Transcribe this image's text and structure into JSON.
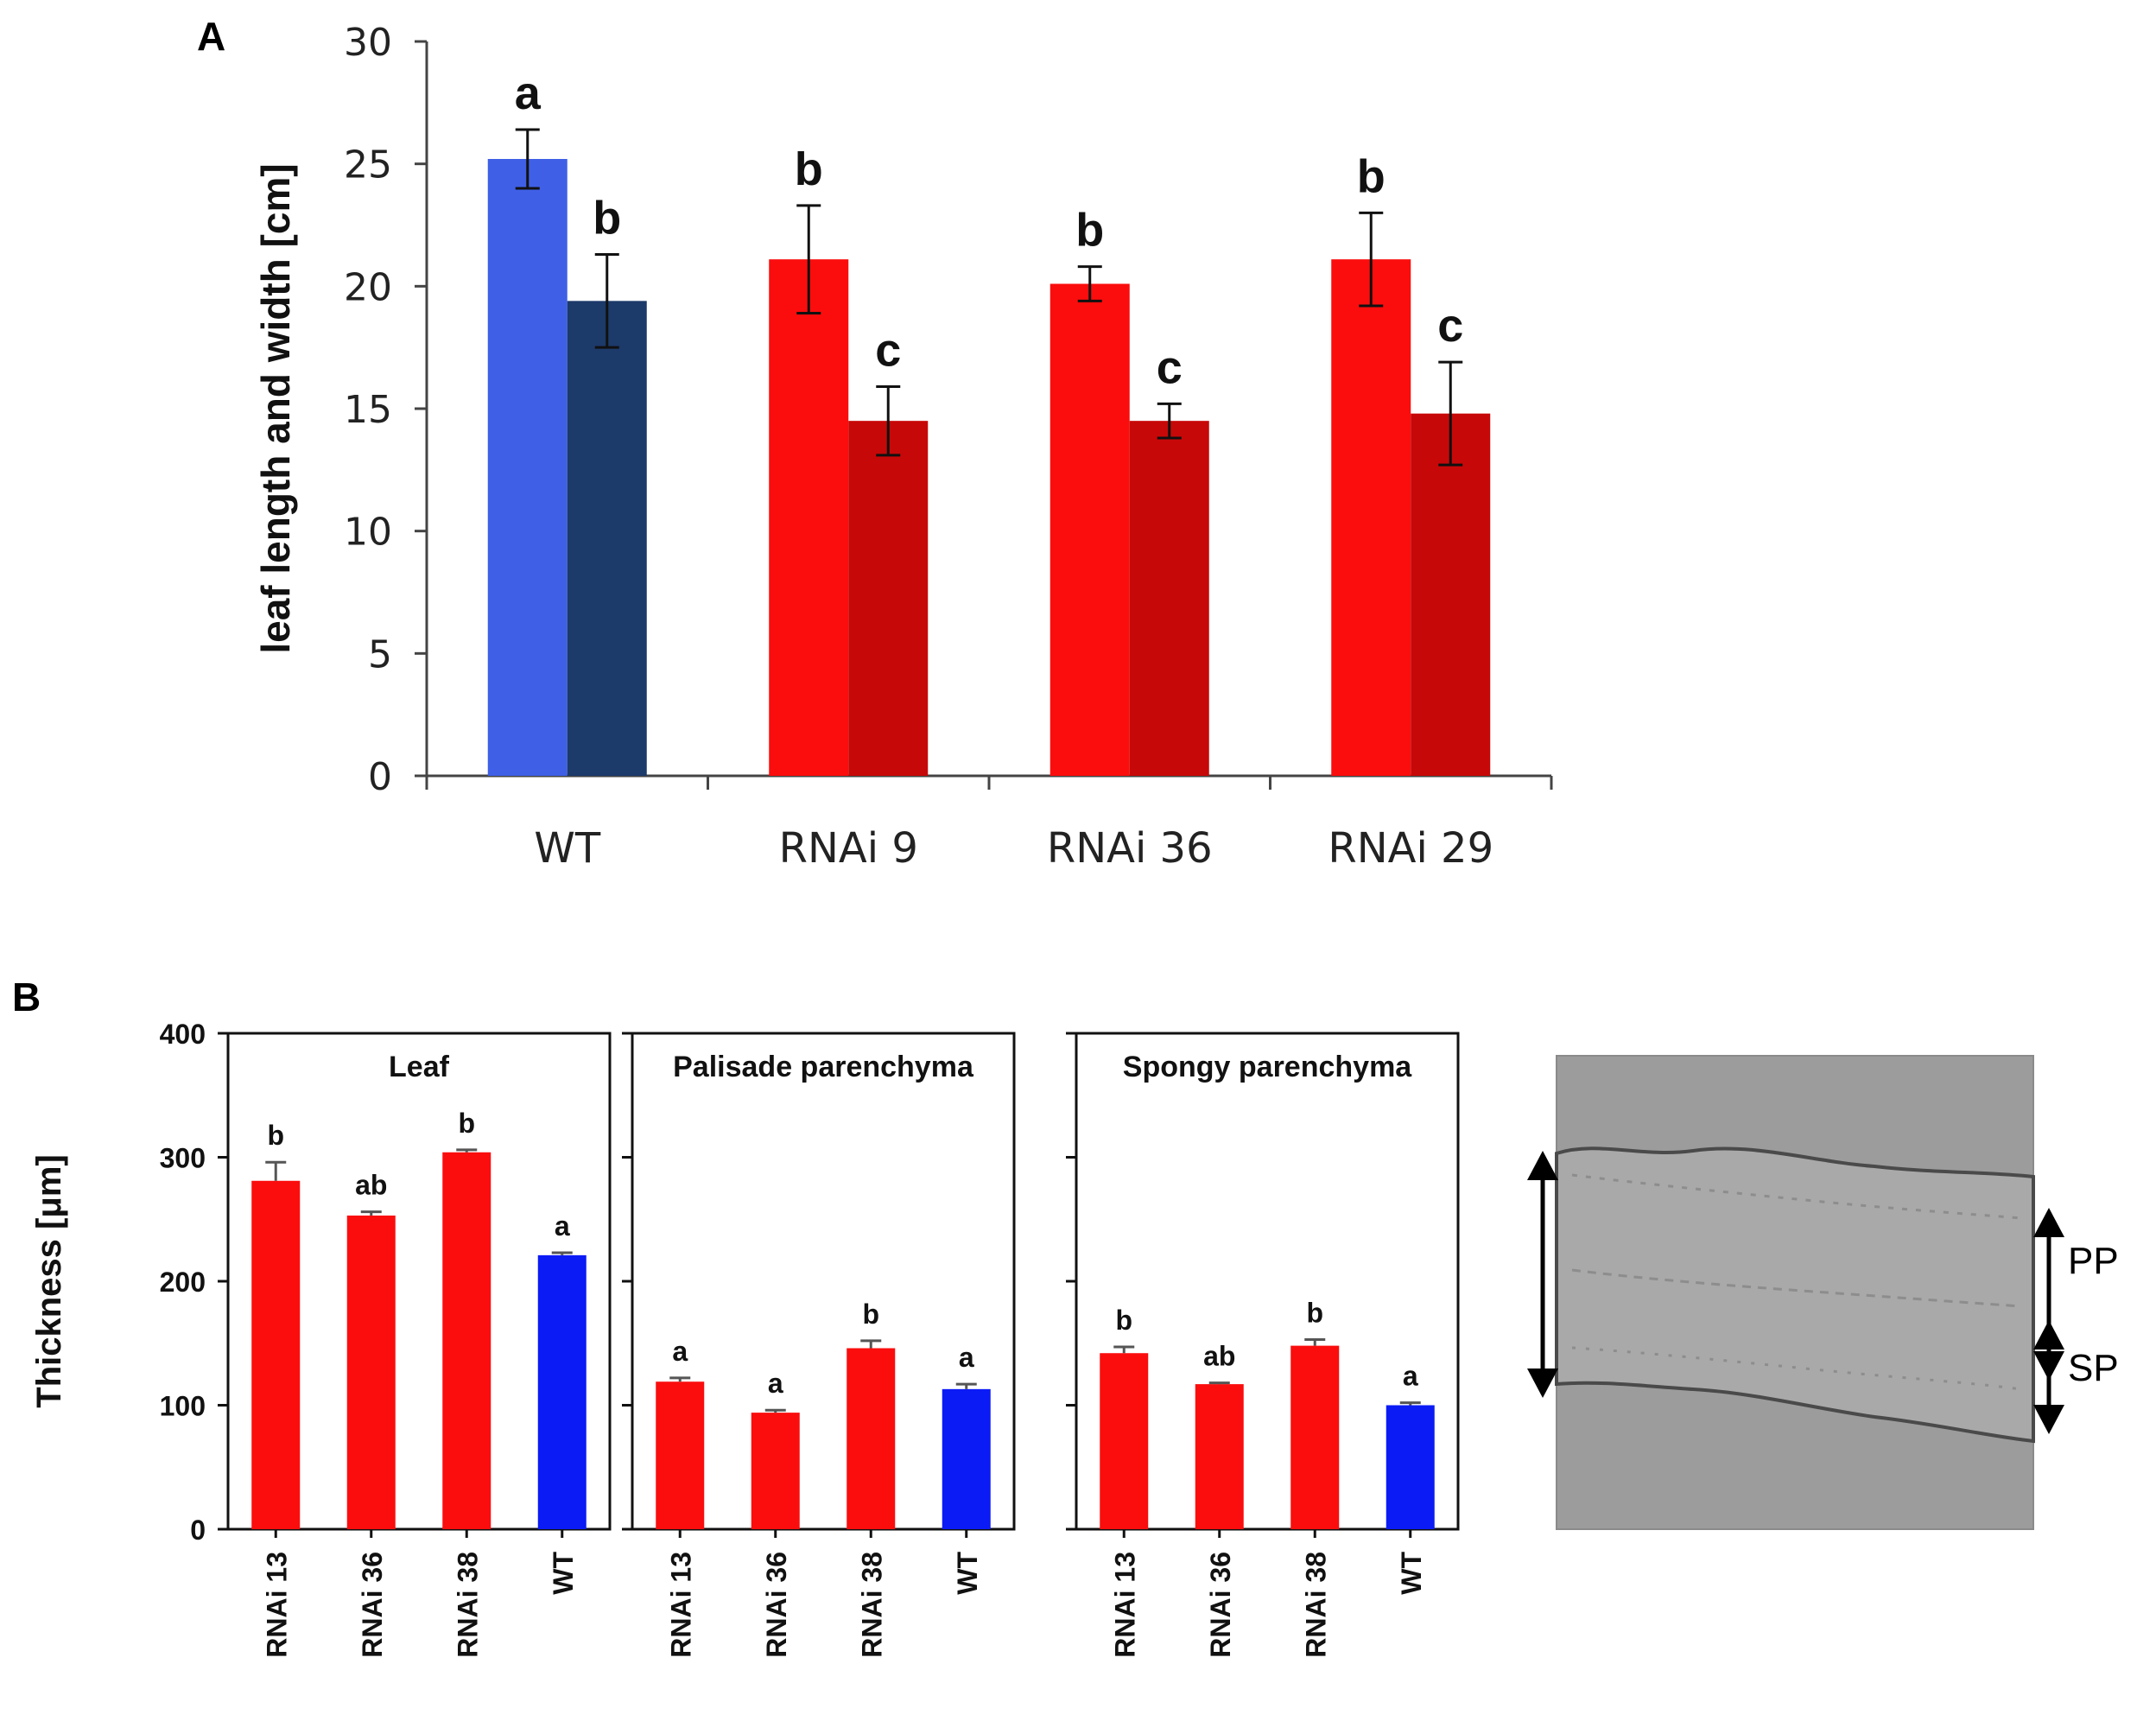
{
  "chart_data": [
    {
      "panel": "A",
      "type": "bar",
      "categories": [
        "WT",
        "RNAi 9",
        "RNAi 36",
        "RNAi 29"
      ],
      "ylabel": "leaf length and width [cm]",
      "xlabel": "",
      "ylim": [
        0,
        30
      ],
      "yticks": [
        "0",
        "5",
        "10",
        "15",
        "20",
        "25",
        "30"
      ],
      "grid": false,
      "series": [
        {
          "name": "length",
          "values": [
            25.2,
            21.1,
            20.1,
            21.1
          ],
          "errors": [
            1.2,
            2.2,
            0.7,
            1.9
          ],
          "letters": [
            "a",
            "b",
            "b",
            "b"
          ],
          "colors": [
            "#3f60e6",
            "#fb0d0d",
            "#fb0d0d",
            "#fb0d0d"
          ]
        },
        {
          "name": "width",
          "values": [
            19.4,
            14.5,
            14.5,
            14.8
          ],
          "errors": [
            1.9,
            1.4,
            0.7,
            2.1
          ],
          "letters": [
            "b",
            "c",
            "c",
            "c"
          ],
          "colors": [
            "#1c3a6a",
            "#c70808",
            "#c70808",
            "#c70808"
          ]
        }
      ]
    },
    {
      "panel": "B",
      "type": "bar",
      "ylabel": "Thickness [μm]",
      "ylim": [
        0,
        400
      ],
      "yticks": [
        "0",
        "100",
        "200",
        "300",
        "400"
      ],
      "categories": [
        "RNAi 13",
        "RNAi 36",
        "RNAi 38",
        "WT"
      ],
      "colors": [
        "#fb0d0d",
        "#fb0d0d",
        "#fb0d0d",
        "#0b1bf5"
      ],
      "subplots": [
        {
          "title": "Leaf",
          "values": [
            281,
            253,
            304,
            221
          ],
          "errors": [
            15,
            3,
            2,
            2
          ],
          "letters": [
            "b",
            "ab",
            "b",
            "a"
          ]
        },
        {
          "title": "Palisade parenchyma",
          "values": [
            119,
            94,
            146,
            113
          ],
          "errors": [
            3,
            2,
            6,
            4
          ],
          "letters": [
            "a",
            "a",
            "b",
            "a"
          ]
        },
        {
          "title": "Spongy parenchyma",
          "values": [
            142,
            117,
            148,
            100
          ],
          "errors": [
            5,
            1,
            5,
            2
          ],
          "letters": [
            "b",
            "ab",
            "b",
            "a"
          ]
        }
      ]
    }
  ],
  "panel_labels": {
    "a": "A",
    "b": "B"
  },
  "micrograph": {
    "label_pp": "PP",
    "label_sp": "SP"
  }
}
